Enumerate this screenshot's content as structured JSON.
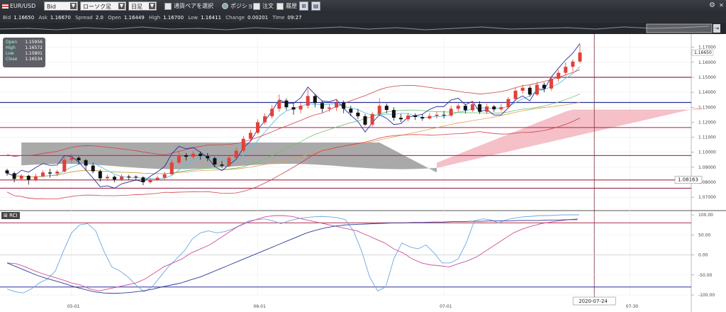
{
  "toolbar": {
    "pair": "EUR/USD",
    "price_type": "Bid",
    "chart_type": "ローソク足",
    "timeframe": "日足",
    "select_pair_label": "通貨ペアを選択",
    "position_label": "ポジション",
    "order_label": "注文中",
    "history_label": "履歴"
  },
  "info": {
    "bid_label": "Bid",
    "bid": "1.16650",
    "ask_label": "Ask",
    "ask": "1.16670",
    "spread_label": "Spread",
    "spread": "2.0",
    "open_label": "Open",
    "open": "1.16449",
    "high_label": "High",
    "high": "1.16700",
    "low_label": "Low",
    "low": "1.16411",
    "change_label": "Change",
    "change": "0.00201",
    "time_label": "Time",
    "time": "09:27"
  },
  "ohlc_box": {
    "open_label": "Open",
    "open": "1.15956",
    "high_label": "High",
    "high": "1.16572",
    "low_label": "Low",
    "low": "1.15801",
    "close_label": "Close",
    "close": "1.16534"
  },
  "colors": {
    "up": "#e0413a",
    "down": "#111111",
    "kumo_bull": "#f3b5be",
    "kumo_bear": "#9a9a9a",
    "level_line": "#9b2c4a",
    "blue_line": "#2b2f9a"
  },
  "chart_data": [
    {
      "type": "candlestick",
      "ylim": [
        1.0625,
        1.176
      ],
      "y_ticks": [
        "1.17000",
        "1.16000",
        "1.15000",
        "1.14000",
        "1.13000",
        "1.12000",
        "1.11000",
        "1.10000",
        "1.09000",
        "1.08000",
        "1.07000"
      ],
      "x_labels": [
        {
          "i": 9,
          "label": "05-01"
        },
        {
          "i": 35,
          "label": "06-01"
        },
        {
          "i": 61,
          "label": "07-01"
        },
        {
          "i": 87,
          "label": "07-30"
        }
      ],
      "current_price": "1.16650",
      "cursor_price": "1.08163",
      "cursor_date": "2020-07-24",
      "cursor_index": 82,
      "h_lines": [
        {
          "y": 1.15,
          "color": "#9b2c4a"
        },
        {
          "y": 1.1332,
          "color": "#2b2f9a"
        },
        {
          "y": 1.1165,
          "color": "#c0306a"
        },
        {
          "y": 1.0978,
          "color": "#c0306a"
        },
        {
          "y": 1.0815,
          "color": "#9b2c4a"
        },
        {
          "y": 1.076,
          "color": "#9b2c4a"
        }
      ],
      "candles": [
        [
          1.0879,
          1.086,
          1.089,
          1.0843
        ],
        [
          1.086,
          1.0822,
          1.087,
          1.08
        ],
        [
          1.0822,
          1.0843,
          1.0855,
          1.0811
        ],
        [
          1.0843,
          1.0817,
          1.085,
          1.0784
        ],
        [
          1.0817,
          1.084,
          1.0856,
          1.0805
        ],
        [
          1.0841,
          1.0865,
          1.088,
          1.0833
        ],
        [
          1.0865,
          1.0858,
          1.089,
          1.083
        ],
        [
          1.0858,
          1.0871,
          1.0883,
          1.084
        ],
        [
          1.0871,
          1.095,
          1.0972,
          1.0865
        ],
        [
          1.095,
          1.0963,
          1.099,
          1.093
        ],
        [
          1.0963,
          1.0947,
          1.0973,
          1.092
        ],
        [
          1.0947,
          1.0911,
          1.0955,
          1.088
        ],
        [
          1.0911,
          1.0873,
          1.093,
          1.086
        ],
        [
          1.0873,
          1.0826,
          1.0885,
          1.0805
        ],
        [
          1.0826,
          1.0836,
          1.085,
          1.081
        ],
        [
          1.0836,
          1.0818,
          1.0845,
          1.08
        ],
        [
          1.0818,
          1.0838,
          1.0853,
          1.0808
        ],
        [
          1.0838,
          1.0837,
          1.085,
          1.0815
        ],
        [
          1.0837,
          1.0832,
          1.0846,
          1.081
        ],
        [
          1.0832,
          1.08,
          1.084,
          1.078
        ],
        [
          1.08,
          1.0817,
          1.083,
          1.079
        ],
        [
          1.0817,
          1.083,
          1.0845,
          1.081
        ],
        [
          1.083,
          1.0853,
          1.087,
          1.082
        ],
        [
          1.0853,
          1.0931,
          1.095,
          1.085
        ],
        [
          1.0931,
          1.098,
          1.101,
          1.092
        ],
        [
          1.098,
          1.097,
          1.0995,
          1.0945
        ],
        [
          1.097,
          1.099,
          1.101,
          1.0955
        ],
        [
          1.099,
          1.0975,
          1.1005,
          1.095
        ],
        [
          1.0975,
          1.096,
          1.0995,
          1.094
        ],
        [
          1.096,
          1.0918,
          1.097,
          1.09
        ],
        [
          1.0918,
          1.091,
          1.094,
          1.0895
        ],
        [
          1.091,
          1.0963,
          1.0975,
          1.09
        ],
        [
          1.0963,
          1.101,
          1.103,
          1.0955
        ],
        [
          1.101,
          1.109,
          1.111,
          1.1
        ],
        [
          1.109,
          1.113,
          1.115,
          1.107
        ],
        [
          1.113,
          1.12,
          1.122,
          1.112
        ],
        [
          1.12,
          1.124,
          1.126,
          1.1185
        ],
        [
          1.124,
          1.129,
          1.1315,
          1.1225
        ],
        [
          1.129,
          1.1345,
          1.1385,
          1.127
        ],
        [
          1.1345,
          1.13,
          1.136,
          1.128
        ],
        [
          1.13,
          1.1285,
          1.133,
          1.125
        ],
        [
          1.1285,
          1.131,
          1.134,
          1.126
        ],
        [
          1.131,
          1.1375,
          1.1422,
          1.129
        ],
        [
          1.1375,
          1.1328,
          1.139,
          1.13
        ],
        [
          1.1328,
          1.129,
          1.1345,
          1.1265
        ],
        [
          1.129,
          1.1298,
          1.132,
          1.127
        ],
        [
          1.1298,
          1.133,
          1.135,
          1.1275
        ],
        [
          1.133,
          1.129,
          1.1345,
          1.126
        ],
        [
          1.129,
          1.1264,
          1.131,
          1.124
        ],
        [
          1.1264,
          1.124,
          1.129,
          1.122
        ],
        [
          1.124,
          1.1184,
          1.1255,
          1.1175
        ],
        [
          1.1184,
          1.1255,
          1.127,
          1.117
        ],
        [
          1.1255,
          1.131,
          1.136,
          1.124
        ],
        [
          1.131,
          1.1282,
          1.1325,
          1.126
        ],
        [
          1.1282,
          1.123,
          1.13,
          1.121
        ],
        [
          1.123,
          1.122,
          1.1255,
          1.12
        ],
        [
          1.122,
          1.1245,
          1.1262,
          1.1205
        ],
        [
          1.1245,
          1.1235,
          1.126,
          1.1215
        ],
        [
          1.1235,
          1.1225,
          1.1252,
          1.121
        ],
        [
          1.1225,
          1.1242,
          1.1262,
          1.1218
        ],
        [
          1.1242,
          1.125,
          1.127,
          1.1225
        ],
        [
          1.125,
          1.1245,
          1.1275,
          1.1225
        ],
        [
          1.1245,
          1.129,
          1.131,
          1.1235
        ],
        [
          1.129,
          1.131,
          1.1325,
          1.127
        ],
        [
          1.131,
          1.128,
          1.132,
          1.126
        ],
        [
          1.128,
          1.132,
          1.134,
          1.127
        ],
        [
          1.132,
          1.127,
          1.134,
          1.1255
        ],
        [
          1.127,
          1.1305,
          1.1325,
          1.1255
        ],
        [
          1.1305,
          1.1286,
          1.1315,
          1.127
        ],
        [
          1.1286,
          1.13,
          1.132,
          1.1275
        ],
        [
          1.13,
          1.1355,
          1.137,
          1.129
        ],
        [
          1.1355,
          1.141,
          1.143,
          1.134
        ],
        [
          1.141,
          1.143,
          1.145,
          1.139
        ],
        [
          1.143,
          1.1385,
          1.1445,
          1.137
        ],
        [
          1.1385,
          1.145,
          1.147,
          1.1375
        ],
        [
          1.145,
          1.1425,
          1.1465,
          1.14
        ],
        [
          1.1425,
          1.149,
          1.1505,
          1.141
        ],
        [
          1.149,
          1.153,
          1.155,
          1.147
        ],
        [
          1.153,
          1.157,
          1.16,
          1.151
        ],
        [
          1.157,
          1.1605,
          1.162,
          1.154
        ],
        [
          1.1605,
          1.1665,
          1.172,
          1.1595
        ]
      ]
    },
    {
      "type": "line",
      "name": "RCI",
      "ylim": [
        -100,
        100
      ],
      "y_ticks": [
        "100.00",
        "50.00",
        "0.00",
        "-50.00",
        "-100.00"
      ],
      "series": [
        {
          "color": "#6aa7e0",
          "values": [
            -85,
            -92,
            -95,
            -85,
            -70,
            -60,
            -40,
            10,
            55,
            75,
            78,
            60,
            10,
            -30,
            -40,
            -55,
            -75,
            -92,
            -80,
            -55,
            -30,
            -10,
            10,
            40,
            55,
            60,
            55,
            58,
            65,
            75,
            85,
            88,
            90,
            85,
            78,
            85,
            90,
            93,
            95,
            96,
            95,
            93,
            88,
            60,
            10,
            -55,
            -90,
            -80,
            -10,
            30,
            20,
            15,
            25,
            5,
            -20,
            -20,
            -10,
            30,
            85,
            90,
            88,
            80,
            88,
            92,
            95,
            96,
            98,
            98,
            99,
            100,
            100,
            100
          ]
        },
        {
          "color": "#d04f9a",
          "values": [
            -20,
            -22,
            -30,
            -40,
            -48,
            -55,
            -62,
            -70,
            -75,
            -85,
            -90,
            -85,
            -80,
            -75,
            -70,
            -60,
            -45,
            -30,
            -20,
            -10,
            5,
            15,
            25,
            40,
            55,
            70,
            80,
            88,
            95,
            98,
            98,
            96,
            90,
            85,
            80,
            75,
            70,
            65,
            60,
            50,
            40,
            30,
            15,
            5,
            -10,
            -20,
            -25,
            -27,
            -30,
            -22,
            -15,
            -5,
            10,
            25,
            40,
            55,
            65,
            72,
            78,
            82,
            85,
            88,
            90
          ]
        },
        {
          "color": "#2e3a9a",
          "values": [
            -20,
            -30,
            -40,
            -50,
            -58,
            -65,
            -72,
            -80,
            -86,
            -92,
            -95,
            -96,
            -95,
            -93,
            -90,
            -86,
            -80,
            -75,
            -70,
            -62,
            -55,
            -45,
            -35,
            -25,
            -15,
            -5,
            5,
            15,
            25,
            35,
            45,
            55,
            62,
            68,
            72,
            75,
            76,
            77,
            78,
            79,
            80,
            80,
            81,
            81,
            82,
            82,
            83,
            83,
            84,
            84,
            85,
            85,
            85,
            86,
            86,
            86,
            87,
            87,
            88,
            88
          ]
        }
      ]
    }
  ]
}
